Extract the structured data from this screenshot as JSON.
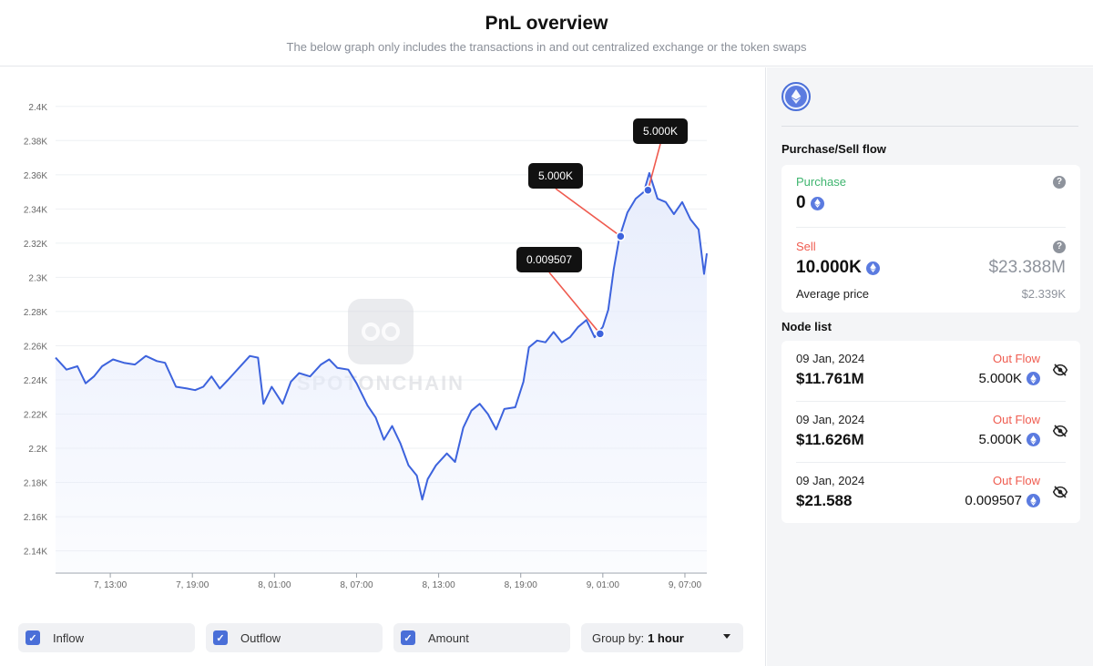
{
  "header": {
    "title": "PnL overview",
    "subtitle": "The below graph only includes the transactions in and out centralized exchange or the token swaps"
  },
  "chart_data": {
    "type": "area",
    "y_ticks": [
      "2.4K",
      "2.38K",
      "2.36K",
      "2.34K",
      "2.32K",
      "2.3K",
      "2.28K",
      "2.26K",
      "2.24K",
      "2.22K",
      "2.2K",
      "2.18K",
      "2.16K",
      "2.14K"
    ],
    "y_values": [
      2400,
      2380,
      2360,
      2340,
      2320,
      2300,
      2280,
      2260,
      2240,
      2220,
      2200,
      2180,
      2160,
      2140
    ],
    "ylim": [
      2127,
      2410
    ],
    "x_tick_labels": [
      "7, 13:00",
      "7, 19:00",
      "8, 01:00",
      "8, 07:00",
      "8, 13:00",
      "8, 19:00",
      "9, 01:00",
      "9, 07:00"
    ],
    "x_tick_hours": [
      13,
      19,
      25,
      31,
      37,
      43,
      49,
      55
    ],
    "xlim": [
      9,
      56.6
    ],
    "watermark": "SPOTONCHAIN",
    "series": [
      {
        "values": [
          [
            9.0,
            2253
          ],
          [
            9.8,
            2246
          ],
          [
            10.6,
            2248
          ],
          [
            11.2,
            2238
          ],
          [
            11.8,
            2242
          ],
          [
            12.4,
            2248
          ],
          [
            13.2,
            2252
          ],
          [
            14.0,
            2250
          ],
          [
            14.8,
            2249
          ],
          [
            15.6,
            2254
          ],
          [
            16.4,
            2251
          ],
          [
            17.0,
            2250
          ],
          [
            17.8,
            2236
          ],
          [
            18.6,
            2235
          ],
          [
            19.2,
            2234
          ],
          [
            19.8,
            2236
          ],
          [
            20.4,
            2242
          ],
          [
            21.0,
            2235
          ],
          [
            21.6,
            2240
          ],
          [
            22.4,
            2247
          ],
          [
            23.2,
            2254
          ],
          [
            23.8,
            2253
          ],
          [
            24.2,
            2226
          ],
          [
            24.8,
            2236
          ],
          [
            25.6,
            2226
          ],
          [
            26.2,
            2239
          ],
          [
            26.8,
            2244
          ],
          [
            27.6,
            2242
          ],
          [
            28.4,
            2249
          ],
          [
            29.0,
            2252
          ],
          [
            29.6,
            2247
          ],
          [
            30.4,
            2246
          ],
          [
            31.0,
            2238
          ],
          [
            31.8,
            2225
          ],
          [
            32.4,
            2218
          ],
          [
            33.0,
            2205
          ],
          [
            33.6,
            2213
          ],
          [
            34.2,
            2203
          ],
          [
            34.8,
            2190
          ],
          [
            35.4,
            2184
          ],
          [
            35.8,
            2170
          ],
          [
            36.2,
            2182
          ],
          [
            36.8,
            2190
          ],
          [
            37.6,
            2197
          ],
          [
            38.2,
            2192
          ],
          [
            38.8,
            2212
          ],
          [
            39.4,
            2222
          ],
          [
            40.0,
            2226
          ],
          [
            40.6,
            2220
          ],
          [
            41.2,
            2211
          ],
          [
            41.8,
            2223
          ],
          [
            42.6,
            2224
          ],
          [
            43.2,
            2239
          ],
          [
            43.6,
            2259
          ],
          [
            44.2,
            2263
          ],
          [
            44.8,
            2262
          ],
          [
            45.4,
            2268
          ],
          [
            46.0,
            2262
          ],
          [
            46.6,
            2265
          ],
          [
            47.2,
            2271
          ],
          [
            47.8,
            2275
          ],
          [
            48.4,
            2265
          ],
          [
            49.0,
            2271
          ],
          [
            49.4,
            2281
          ],
          [
            49.8,
            2305
          ],
          [
            50.2,
            2323
          ],
          [
            50.8,
            2338
          ],
          [
            51.4,
            2346
          ],
          [
            52.0,
            2350
          ],
          [
            52.4,
            2361
          ],
          [
            53.0,
            2346
          ],
          [
            53.6,
            2344
          ],
          [
            54.2,
            2337
          ],
          [
            54.8,
            2344
          ],
          [
            55.4,
            2334
          ],
          [
            56.0,
            2328
          ],
          [
            56.4,
            2302
          ],
          [
            56.6,
            2314
          ]
        ]
      }
    ],
    "annotations": [
      {
        "label": "0.009507",
        "x": 48.8,
        "y": 2267
      },
      {
        "label": "5.000K",
        "x": 50.3,
        "y": 2324
      },
      {
        "label": "5.000K",
        "x": 52.3,
        "y": 2351
      }
    ],
    "colors": {
      "line": "#3d63dd",
      "fill": "#e6ecfc",
      "annotation_line": "#ef5b4f",
      "tooltip_bg": "#111111"
    }
  },
  "controls": {
    "inflow": "Inflow",
    "outflow": "Outflow",
    "amount": "Amount",
    "group_by_label": "Group by:",
    "group_by_value": "1 hour"
  },
  "panel": {
    "token_icon": "ethereum-icon",
    "flow_title": "Purchase/Sell flow",
    "purchase_label": "Purchase",
    "purchase_value": "0",
    "sell_label": "Sell",
    "sell_value": "10.000K",
    "sell_usd": "$23.388M",
    "avg_price_label": "Average price",
    "avg_price_value": "$2.339K",
    "node_title": "Node list",
    "nodes": [
      {
        "date": "09 Jan, 2024",
        "usd": "$11.761M",
        "flow": "Out Flow",
        "qty": "5.000K"
      },
      {
        "date": "09 Jan, 2024",
        "usd": "$11.626M",
        "flow": "Out Flow",
        "qty": "5.000K"
      },
      {
        "date": "09 Jan, 2024",
        "usd": "$21.588",
        "flow": "Out Flow",
        "qty": "0.009507"
      }
    ],
    "colors": {
      "purchase": "#3fb56f",
      "sell": "#ef5b4f",
      "accent": "#4a6fd8"
    }
  }
}
